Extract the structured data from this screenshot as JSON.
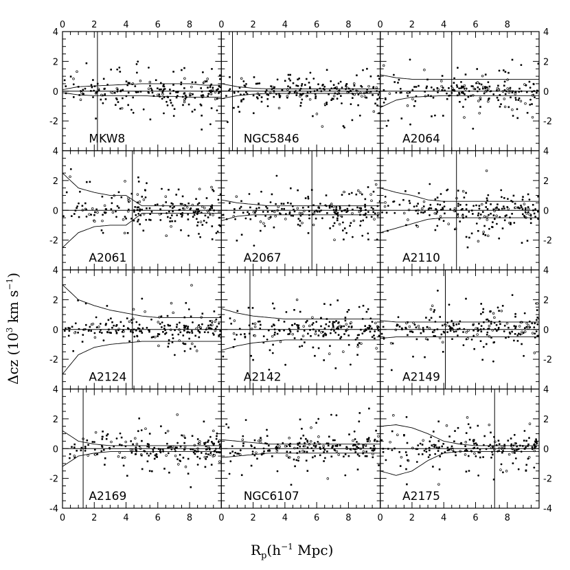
{
  "chart_data": {
    "type": "scatter",
    "xlabel_main": "R",
    "xlabel_sub": "p",
    "xlabel_rest": "(h",
    "xlabel_exp": "−1",
    "xlabel_end": " Mpc)",
    "ylabel_main": "Δcz  (10",
    "ylabel_exp3": "3",
    "ylabel_mid": " km s",
    "ylabel_exp": "−1",
    "ylabel_end": ")",
    "xlim": [
      0,
      10
    ],
    "ylim": [
      -4,
      4
    ],
    "xticks": [
      "0",
      "2",
      "4",
      "6",
      "8"
    ],
    "yticks": [
      "-2",
      "0",
      "2",
      "4"
    ],
    "ytick_bottom": "-4",
    "grid": false,
    "panels": [
      {
        "name": "MKW8",
        "vline": 2.2,
        "env_upper": [
          [
            0,
            0.1
          ],
          [
            1,
            0.3
          ],
          [
            2,
            0.35
          ],
          [
            3,
            0.4
          ],
          [
            4,
            0.45
          ],
          [
            5,
            0.5
          ],
          [
            6,
            0.5
          ],
          [
            7,
            0.5
          ],
          [
            8,
            0.5
          ],
          [
            9,
            0.4
          ],
          [
            10,
            0.4
          ]
        ],
        "env_lower": [
          [
            0,
            -0.1
          ],
          [
            1,
            -0.25
          ],
          [
            2,
            -0.3
          ],
          [
            3,
            -0.3
          ],
          [
            4,
            -0.3
          ],
          [
            5,
            -0.3
          ],
          [
            6,
            -0.35
          ],
          [
            7,
            -0.35
          ],
          [
            8,
            -0.4
          ],
          [
            9,
            -0.4
          ],
          [
            10,
            -0.4
          ]
        ]
      },
      {
        "name": "NGC5846",
        "vline": 0.7,
        "env_upper": [
          [
            0,
            0.5
          ],
          [
            1,
            0.3
          ],
          [
            2,
            0.2
          ],
          [
            3,
            0.15
          ],
          [
            4,
            0.15
          ],
          [
            5,
            0.15
          ],
          [
            6,
            0.15
          ],
          [
            7,
            0.15
          ],
          [
            8,
            0.15
          ],
          [
            9,
            0.15
          ],
          [
            10,
            0.15
          ]
        ],
        "env_lower": [
          [
            0,
            -0.5
          ],
          [
            1,
            -0.3
          ],
          [
            2,
            -0.2
          ],
          [
            3,
            -0.15
          ],
          [
            4,
            -0.15
          ],
          [
            5,
            -0.15
          ],
          [
            6,
            -0.15
          ],
          [
            7,
            -0.15
          ],
          [
            8,
            -0.15
          ],
          [
            9,
            -0.15
          ],
          [
            10,
            -0.15
          ]
        ]
      },
      {
        "name": "A2064",
        "vline": 4.5,
        "env_upper": [
          [
            0,
            1.1
          ],
          [
            1,
            0.9
          ],
          [
            2,
            0.8
          ],
          [
            3,
            0.8
          ],
          [
            4,
            0.8
          ],
          [
            5,
            0.8
          ],
          [
            6,
            0.8
          ],
          [
            7,
            0.8
          ],
          [
            8,
            0.8
          ],
          [
            9,
            0.8
          ],
          [
            10,
            0.8
          ]
        ],
        "env_lower": [
          [
            0,
            -1.1
          ],
          [
            1,
            -0.6
          ],
          [
            2,
            -0.4
          ],
          [
            3,
            -0.35
          ],
          [
            4,
            -0.3
          ],
          [
            5,
            -0.3
          ],
          [
            6,
            -0.3
          ],
          [
            7,
            -0.3
          ],
          [
            8,
            -0.3
          ],
          [
            9,
            -0.3
          ],
          [
            10,
            -0.3
          ]
        ]
      },
      {
        "name": "A2061",
        "vline": 4.4,
        "env_upper": [
          [
            0,
            2.5
          ],
          [
            1,
            1.5
          ],
          [
            2,
            1.2
          ],
          [
            3,
            1.0
          ],
          [
            4,
            1.0
          ],
          [
            5,
            0.3
          ],
          [
            6,
            0.3
          ],
          [
            7,
            0.3
          ],
          [
            8,
            0.3
          ],
          [
            9,
            0.3
          ],
          [
            10,
            0.3
          ]
        ],
        "env_lower": [
          [
            0,
            -2.5
          ],
          [
            1,
            -1.5
          ],
          [
            2,
            -1.1
          ],
          [
            3,
            -1.0
          ],
          [
            4,
            -1.0
          ],
          [
            5,
            -0.2
          ],
          [
            6,
            -0.2
          ],
          [
            7,
            -0.2
          ],
          [
            8,
            -0.2
          ],
          [
            9,
            -0.2
          ],
          [
            10,
            -0.2
          ]
        ]
      },
      {
        "name": "A2067",
        "vline": 5.7,
        "env_upper": [
          [
            0,
            0.7
          ],
          [
            1,
            0.5
          ],
          [
            2,
            0.4
          ],
          [
            3,
            0.3
          ],
          [
            4,
            0.3
          ],
          [
            5,
            0.3
          ],
          [
            6,
            0.3
          ],
          [
            7,
            0.3
          ],
          [
            8,
            0.3
          ],
          [
            9,
            0.3
          ],
          [
            10,
            0.3
          ]
        ],
        "env_lower": [
          [
            0,
            -0.7
          ],
          [
            1,
            -0.4
          ],
          [
            2,
            -0.3
          ],
          [
            3,
            -0.3
          ],
          [
            4,
            -0.3
          ],
          [
            5,
            -0.3
          ],
          [
            6,
            -0.3
          ],
          [
            7,
            -0.3
          ],
          [
            8,
            -0.3
          ],
          [
            9,
            -0.3
          ],
          [
            10,
            -0.3
          ]
        ]
      },
      {
        "name": "A2110",
        "vline": 4.8,
        "env_upper": [
          [
            0,
            1.5
          ],
          [
            1,
            1.2
          ],
          [
            2,
            1.0
          ],
          [
            3,
            0.7
          ],
          [
            4,
            0.6
          ],
          [
            5,
            0.6
          ],
          [
            6,
            0.6
          ],
          [
            7,
            0.6
          ],
          [
            8,
            0.6
          ],
          [
            9,
            0.6
          ],
          [
            10,
            0.6
          ]
        ],
        "env_lower": [
          [
            0,
            -1.5
          ],
          [
            1,
            -1.2
          ],
          [
            2,
            -0.9
          ],
          [
            3,
            -0.6
          ],
          [
            4,
            -0.5
          ],
          [
            5,
            -0.5
          ],
          [
            6,
            -0.5
          ],
          [
            7,
            -0.5
          ],
          [
            8,
            -0.5
          ],
          [
            9,
            -0.5
          ],
          [
            10,
            -0.5
          ]
        ]
      },
      {
        "name": "A2124",
        "vline": 4.4,
        "env_upper": [
          [
            0,
            3.0
          ],
          [
            1,
            2.0
          ],
          [
            2,
            1.6
          ],
          [
            3,
            1.3
          ],
          [
            4,
            1.1
          ],
          [
            5,
            0.9
          ],
          [
            6,
            0.8
          ],
          [
            7,
            0.8
          ],
          [
            8,
            0.8
          ],
          [
            9,
            0.8
          ],
          [
            10,
            0.8
          ]
        ],
        "env_lower": [
          [
            0,
            -3.0
          ],
          [
            1,
            -1.7
          ],
          [
            2,
            -1.2
          ],
          [
            3,
            -1.0
          ],
          [
            4,
            -0.9
          ],
          [
            5,
            -0.8
          ],
          [
            6,
            -0.8
          ],
          [
            7,
            -0.8
          ],
          [
            8,
            -0.8
          ],
          [
            9,
            -0.8
          ],
          [
            10,
            -0.8
          ]
        ]
      },
      {
        "name": "A2142",
        "vline": 1.8,
        "env_upper": [
          [
            0,
            1.4
          ],
          [
            1,
            1.1
          ],
          [
            2,
            0.9
          ],
          [
            3,
            0.8
          ],
          [
            4,
            0.7
          ],
          [
            5,
            0.7
          ],
          [
            6,
            0.7
          ],
          [
            7,
            0.7
          ],
          [
            8,
            0.7
          ],
          [
            9,
            0.7
          ],
          [
            10,
            0.7
          ]
        ],
        "env_lower": [
          [
            0,
            -1.4
          ],
          [
            1,
            -1.1
          ],
          [
            2,
            -0.9
          ],
          [
            3,
            -0.8
          ],
          [
            4,
            -0.7
          ],
          [
            5,
            -0.7
          ],
          [
            6,
            -0.7
          ],
          [
            7,
            -0.7
          ],
          [
            8,
            -0.7
          ],
          [
            9,
            -0.7
          ],
          [
            10,
            -0.7
          ]
        ]
      },
      {
        "name": "A2149",
        "vline": 4.1,
        "env_upper": [
          [
            0,
            0.6
          ],
          [
            1,
            0.5
          ],
          [
            2,
            0.5
          ],
          [
            3,
            0.5
          ],
          [
            4,
            0.5
          ],
          [
            5,
            0.5
          ],
          [
            6,
            0.5
          ],
          [
            7,
            0.5
          ],
          [
            8,
            0.5
          ],
          [
            9,
            0.5
          ],
          [
            10,
            0.5
          ]
        ],
        "env_lower": [
          [
            0,
            -0.6
          ],
          [
            1,
            -0.5
          ],
          [
            2,
            -0.5
          ],
          [
            3,
            -0.5
          ],
          [
            4,
            -0.5
          ],
          [
            5,
            -0.5
          ],
          [
            6,
            -0.5
          ],
          [
            7,
            -0.5
          ],
          [
            8,
            -0.5
          ],
          [
            9,
            -0.5
          ],
          [
            10,
            -0.5
          ]
        ]
      },
      {
        "name": "A2169",
        "vline": 1.3,
        "env_upper": [
          [
            0,
            1.2
          ],
          [
            1,
            0.5
          ],
          [
            2,
            0.3
          ],
          [
            3,
            0.2
          ],
          [
            4,
            0.2
          ],
          [
            5,
            0.2
          ],
          [
            6,
            0.2
          ],
          [
            7,
            0.2
          ],
          [
            8,
            0.2
          ],
          [
            9,
            0.2
          ],
          [
            10,
            0.2
          ]
        ],
        "env_lower": [
          [
            0,
            -1.2
          ],
          [
            1,
            -0.5
          ],
          [
            2,
            -0.3
          ],
          [
            3,
            -0.2
          ],
          [
            4,
            -0.2
          ],
          [
            5,
            -0.2
          ],
          [
            6,
            -0.2
          ],
          [
            7,
            -0.2
          ],
          [
            8,
            -0.2
          ],
          [
            9,
            -0.2
          ],
          [
            10,
            -0.2
          ]
        ]
      },
      {
        "name": "NGC6107",
        "vline": null,
        "env_upper": [
          [
            0,
            0.6
          ],
          [
            1,
            0.5
          ],
          [
            2,
            0.4
          ],
          [
            3,
            0.3
          ],
          [
            4,
            0.3
          ],
          [
            5,
            0.3
          ],
          [
            6,
            0.3
          ],
          [
            7,
            0.3
          ],
          [
            8,
            0.3
          ],
          [
            9,
            0.3
          ],
          [
            10,
            0.3
          ]
        ],
        "env_lower": [
          [
            0,
            -0.6
          ],
          [
            1,
            -0.5
          ],
          [
            2,
            -0.4
          ],
          [
            3,
            -0.3
          ],
          [
            4,
            -0.3
          ],
          [
            5,
            -0.3
          ],
          [
            6,
            -0.3
          ],
          [
            7,
            -0.3
          ],
          [
            8,
            -0.3
          ],
          [
            9,
            -0.3
          ],
          [
            10,
            -0.3
          ]
        ]
      },
      {
        "name": "A2175",
        "vline": 7.2,
        "env_upper": [
          [
            0,
            1.5
          ],
          [
            1,
            1.6
          ],
          [
            2,
            1.4
          ],
          [
            3,
            1.0
          ],
          [
            4,
            0.5
          ],
          [
            5,
            0.3
          ],
          [
            6,
            0.2
          ],
          [
            7,
            0.2
          ],
          [
            8,
            0.2
          ],
          [
            9,
            0.2
          ],
          [
            10,
            0.2
          ]
        ],
        "env_lower": [
          [
            0,
            -1.5
          ],
          [
            1,
            -1.8
          ],
          [
            2,
            -1.5
          ],
          [
            3,
            -0.8
          ],
          [
            4,
            -0.3
          ],
          [
            5,
            -0.2
          ],
          [
            6,
            -0.2
          ],
          [
            7,
            -0.2
          ],
          [
            8,
            -0.2
          ],
          [
            9,
            -0.2
          ],
          [
            10,
            -0.2
          ]
        ]
      }
    ]
  }
}
